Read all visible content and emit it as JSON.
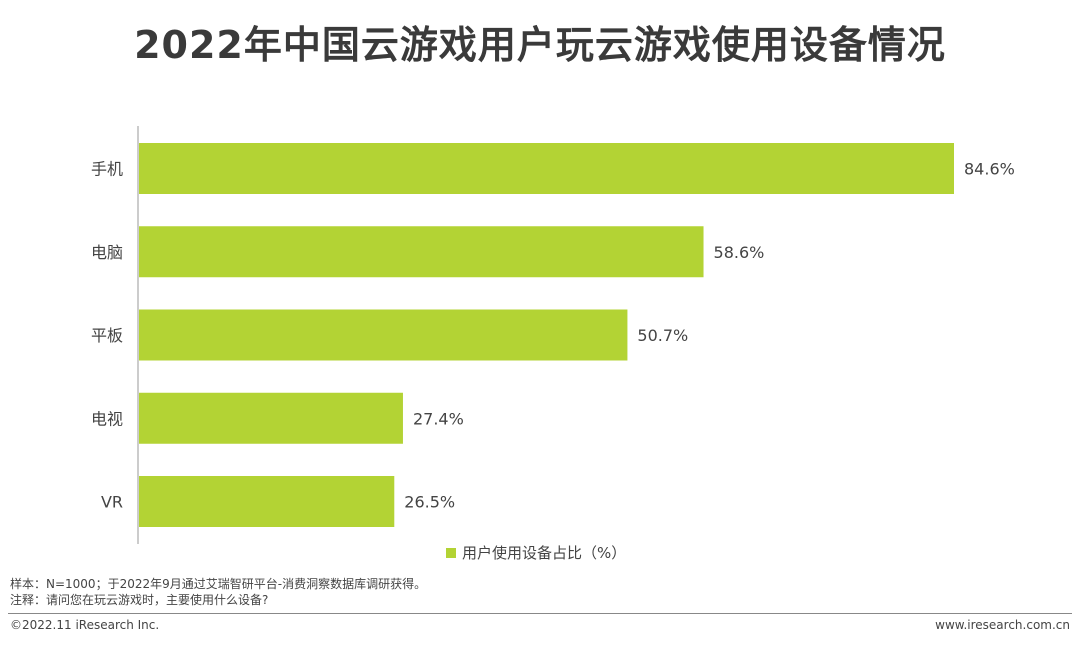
{
  "title": "2022年中国云游戏用户玩云游戏使用设备情况",
  "chart_data": {
    "type": "bar",
    "orientation": "horizontal",
    "categories": [
      "手机",
      "电脑",
      "平板",
      "电视",
      "VR"
    ],
    "series": [
      {
        "name": "用户使用设备占比（%）",
        "values": [
          84.6,
          58.6,
          50.7,
          27.4,
          26.5
        ]
      }
    ],
    "value_labels": [
      "84.6%",
      "58.6%",
      "50.7%",
      "27.4%",
      "26.5%"
    ],
    "xlim": [
      0,
      100
    ],
    "grid": false,
    "legend_position": "bottom",
    "bar_color": "#b3d334"
  },
  "legend": {
    "label": "用户使用设备占比（%）"
  },
  "footnotes": {
    "sample": "样本：N=1000；于2022年9月通过艾瑞智研平台-消费洞察数据库调研获得。",
    "note": "注释：请问您在玩云游戏时，主要使用什么设备?"
  },
  "footer": {
    "copyright": "©2022.11 iResearch Inc.",
    "website": "www.iresearch.com.cn"
  }
}
